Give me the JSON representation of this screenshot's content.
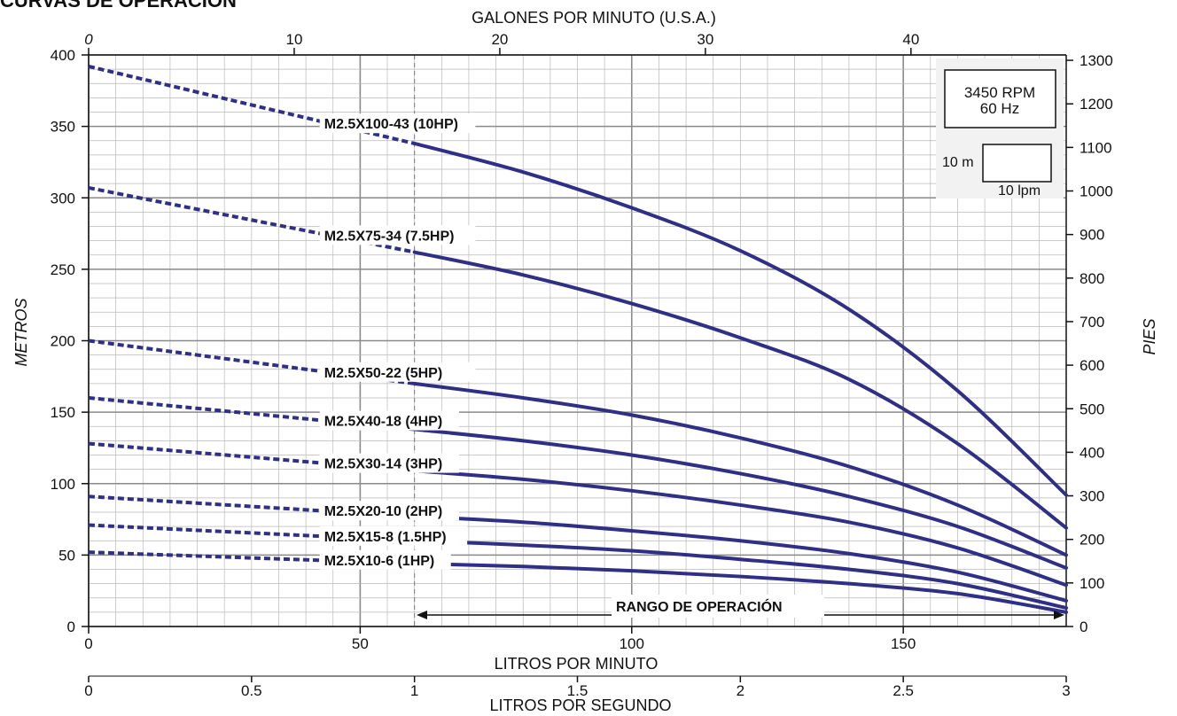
{
  "title": "CURVAS DE OPERACIÓN",
  "chart_data": {
    "type": "line",
    "top_axis": {
      "label": "GALONES POR MINUTO (U.S.A.)",
      "ticks": [
        "0",
        "10",
        "20",
        "30",
        "40"
      ],
      "values": [
        0,
        10,
        20,
        30,
        40
      ]
    },
    "left_axis": {
      "label": "METROS",
      "ticks": [
        "0",
        "50",
        "100",
        "150",
        "200",
        "250",
        "300",
        "350",
        "400"
      ],
      "values": [
        0,
        50,
        100,
        150,
        200,
        250,
        300,
        350,
        400
      ],
      "ylim": [
        0,
        400
      ]
    },
    "right_axis": {
      "label": "PIES",
      "ticks": [
        "0",
        "100",
        "200",
        "300",
        "400",
        "500",
        "600",
        "700",
        "800",
        "900",
        "1000",
        "1100",
        "1200",
        "1300"
      ],
      "values": [
        0,
        100,
        200,
        300,
        400,
        500,
        600,
        700,
        800,
        900,
        1000,
        1100,
        1200,
        1300
      ]
    },
    "bottom_axis": {
      "label": "LITROS POR MINUTO",
      "ticks": [
        "0",
        "50",
        "100",
        "150"
      ],
      "values": [
        0,
        50,
        100,
        150
      ],
      "xlim": [
        0,
        180
      ]
    },
    "bottom_axis2": {
      "label": "LITROS POR SEGUNDO",
      "ticks": [
        "0",
        "0.5",
        "1",
        "1.5",
        "2",
        "2.5",
        "3"
      ],
      "values": [
        0,
        0.5,
        1,
        1.5,
        2,
        2.5,
        3
      ]
    },
    "operating_range": {
      "label": "RANGO DE OPERACIÓN",
      "start_lpm": 60,
      "end_lpm": 180
    },
    "info_box": {
      "line1": "3450 RPM",
      "line2": "60 Hz"
    },
    "scale_box": {
      "vertical": "10 m",
      "horizontal": "10 lpm"
    },
    "series": [
      {
        "name": "M2.5X100-43 (10HP)",
        "x": [
          0,
          60,
          80,
          100,
          120,
          140,
          160,
          180
        ],
        "y": [
          392,
          338,
          318,
          293,
          263,
          222,
          165,
          92
        ]
      },
      {
        "name": "M2.5X75-34 (7.5HP)",
        "x": [
          0,
          60,
          80,
          100,
          120,
          140,
          160,
          180
        ],
        "y": [
          307,
          262,
          246,
          226,
          202,
          173,
          128,
          69
        ]
      },
      {
        "name": "M2.5X50-22   (5HP)",
        "x": [
          0,
          60,
          80,
          100,
          120,
          140,
          160,
          180
        ],
        "y": [
          200,
          170,
          160,
          148,
          132,
          112,
          85,
          50
        ]
      },
      {
        "name": "M2.5X40-18 (4HP)",
        "x": [
          0,
          60,
          80,
          100,
          120,
          140,
          160,
          180
        ],
        "y": [
          160,
          138,
          130,
          120,
          107,
          91,
          70,
          41
        ]
      },
      {
        "name": "M2.5X30-14 (3HP)",
        "x": [
          0,
          60,
          80,
          100,
          120,
          140,
          160,
          180
        ],
        "y": [
          128,
          109,
          103,
          95,
          85,
          73,
          55,
          29
        ]
      },
      {
        "name": "M2.5X20-10 (2HP)",
        "x": [
          0,
          60,
          80,
          100,
          120,
          140,
          160,
          180
        ],
        "y": [
          91,
          77,
          73,
          67,
          60,
          51,
          38,
          18
        ]
      },
      {
        "name": "M2.5X15-8 (1.5HP)",
        "x": [
          0,
          60,
          80,
          100,
          120,
          140,
          160,
          180
        ],
        "y": [
          71,
          60,
          57,
          53,
          47,
          40,
          30,
          13
        ]
      },
      {
        "name": "M2.5X10-6 (1HP)",
        "x": [
          0,
          60,
          80,
          100,
          120,
          140,
          160,
          180
        ],
        "y": [
          52,
          44,
          42,
          39,
          35,
          30,
          23,
          10
        ]
      }
    ]
  }
}
